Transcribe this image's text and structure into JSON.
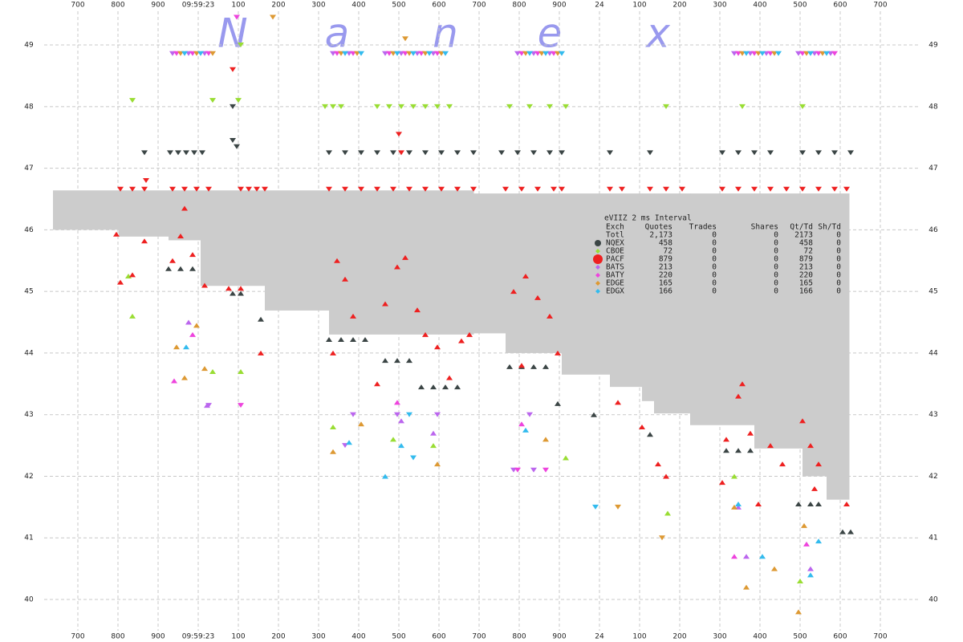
{
  "chart_data": {
    "type": "scatter",
    "watermark": [
      "N",
      "a",
      "n",
      "e",
      "x"
    ],
    "xlim": [
      506,
      2906
    ],
    "ylim": [
      39.31,
      49.73
    ],
    "xticks": [
      700,
      800,
      900,
      {
        "value": 1000,
        "label": "09:59:23"
      },
      {
        "value": 1100,
        "label": "100"
      },
      {
        "value": 1200,
        "label": "200"
      },
      {
        "value": 1300,
        "label": "300"
      },
      {
        "value": 1400,
        "label": "400"
      },
      {
        "value": 1500,
        "label": "500"
      },
      {
        "value": 1600,
        "label": "600"
      },
      {
        "value": 1700,
        "label": "700"
      },
      {
        "value": 1800,
        "label": "800"
      },
      {
        "value": 1900,
        "label": "900"
      },
      {
        "value": 2000,
        "label": "24"
      },
      {
        "value": 2100,
        "label": "100"
      },
      {
        "value": 2200,
        "label": "200"
      },
      {
        "value": 2300,
        "label": "300"
      },
      {
        "value": 2400,
        "label": "400"
      },
      {
        "value": 2500,
        "label": "500"
      },
      {
        "value": 2600,
        "label": "600"
      },
      {
        "value": 2700,
        "label": "700"
      }
    ],
    "yticks": [
      40,
      41,
      42,
      43,
      44,
      45,
      46,
      47,
      48,
      49
    ],
    "grid": true,
    "spread": {
      "color": "#cccccc",
      "x": [
        638,
        802,
        926,
        1006,
        1166,
        1326,
        1686,
        1766,
        1906,
        2026,
        2106,
        2136,
        2226,
        2386,
        2506,
        2566
      ],
      "x_end": 2622,
      "ask": [
        46.64,
        46.64,
        46.64,
        46.64,
        46.64,
        46.64,
        46.59,
        46.59,
        46.59,
        46.59,
        46.59,
        46.59,
        46.59,
        46.59,
        46.59,
        46.59
      ],
      "bid": [
        46.0,
        45.89,
        45.83,
        45.09,
        44.69,
        44.3,
        44.32,
        44.0,
        43.65,
        43.45,
        43.22,
        43.02,
        42.83,
        42.45,
        42.0,
        41.62
      ]
    },
    "table": {
      "title": "eVIIZ 2 ms Interval",
      "columns": [
        "Exch",
        "Quotes",
        "Trades",
        "Shares",
        "Qt/Td",
        "Sh/Td"
      ],
      "total": [
        "Totl",
        "2,173",
        "0",
        "0",
        "2173",
        "0"
      ]
    },
    "series": [
      {
        "name": "NQEX",
        "color": "#3b4545",
        "marker": "circle",
        "stats": [
          "458",
          "0",
          "0",
          "458",
          "0"
        ],
        "ask_x": [
          866,
          930,
          950,
          970,
          990,
          1010,
          1326,
          1366,
          1406,
          1446,
          1486,
          1526,
          1566,
          1606,
          1646,
          1686,
          1756,
          1796,
          1836,
          1876,
          1906,
          2026,
          2126,
          2306,
          2346,
          2386,
          2426,
          2506,
          2546,
          2586,
          2626,
          1086,
          1086,
          1096
        ],
        "ask_y": [
          47.25,
          47.25,
          47.25,
          47.25,
          47.25,
          47.25,
          47.25,
          47.25,
          47.25,
          47.25,
          47.25,
          47.25,
          47.25,
          47.25,
          47.25,
          47.25,
          47.25,
          47.25,
          47.25,
          47.25,
          47.25,
          47.25,
          47.25,
          47.25,
          47.25,
          47.25,
          47.25,
          47.25,
          47.25,
          47.25,
          47.25,
          48.0,
          47.45,
          47.35
        ],
        "bid_x": [
          926,
          956,
          986,
          1086,
          1106,
          1156,
          1326,
          1356,
          1386,
          1416,
          1466,
          1496,
          1526,
          1556,
          1586,
          1616,
          1646,
          1776,
          1806,
          1836,
          1866,
          1896,
          1986,
          2126,
          2316,
          2346,
          2376,
          2496,
          2526,
          2546,
          2606,
          2626
        ],
        "bid_y": [
          45.37,
          45.37,
          45.37,
          44.97,
          44.97,
          44.55,
          44.22,
          44.22,
          44.22,
          44.22,
          43.88,
          43.88,
          43.88,
          43.45,
          43.45,
          43.45,
          43.45,
          43.78,
          43.78,
          43.78,
          43.78,
          43.18,
          43.0,
          42.68,
          42.42,
          42.42,
          42.42,
          41.55,
          41.55,
          41.55,
          41.1,
          41.1
        ]
      },
      {
        "name": "CBOE",
        "color": "#99dd33",
        "marker": "diamond",
        "stats": [
          "72",
          "0",
          "0",
          "72",
          "0"
        ],
        "ask_x": [
          836,
          1036,
          1100,
          1106,
          1316,
          1336,
          1356,
          1446,
          1476,
          1506,
          1536,
          1566,
          1596,
          1626,
          1776,
          1826,
          1876,
          1916,
          2166,
          2356,
          2506
        ],
        "ask_y": [
          48.1,
          48.1,
          48.1,
          49.0,
          48.0,
          48.0,
          48.0,
          48.0,
          48.0,
          48.0,
          48.0,
          48.0,
          48.0,
          48.0,
          48.0,
          48.0,
          48.0,
          48.0,
          48.0,
          48.0,
          48.0
        ],
        "bid_x": [
          826,
          836,
          1036,
          1106,
          1336,
          1486,
          1586,
          1916,
          2170,
          2336,
          2500
        ],
        "bid_y": [
          45.25,
          44.6,
          43.7,
          43.7,
          42.8,
          42.6,
          42.5,
          42.3,
          41.4,
          42.0,
          40.3
        ]
      },
      {
        "name": "PACF",
        "color": "#ee2020",
        "marker": "bigcircle",
        "stats": [
          "879",
          "0",
          "0",
          "879",
          "0"
        ],
        "ask_x": [
          806,
          836,
          866,
          936,
          966,
          996,
          1026,
          1086,
          1106,
          1126,
          1146,
          1166,
          1326,
          1366,
          1406,
          1446,
          1486,
          1526,
          1566,
          1606,
          1646,
          1686,
          1766,
          1806,
          1846,
          1886,
          1906,
          2026,
          2056,
          2126,
          2166,
          2206,
          2306,
          2346,
          2386,
          2426,
          2466,
          2506,
          2546,
          2586,
          2616,
          1500,
          1506,
          870
        ],
        "ask_y": [
          46.66,
          46.66,
          46.66,
          46.66,
          46.66,
          46.66,
          46.66,
          48.6,
          46.66,
          46.66,
          46.66,
          46.66,
          46.66,
          46.66,
          46.66,
          46.66,
          46.66,
          46.66,
          46.66,
          46.66,
          46.66,
          46.66,
          46.66,
          46.66,
          46.66,
          46.66,
          46.66,
          46.66,
          46.66,
          46.66,
          46.66,
          46.66,
          46.66,
          46.66,
          46.66,
          46.66,
          46.66,
          46.66,
          46.66,
          46.66,
          46.66,
          47.55,
          47.25,
          46.8
        ],
        "bid_x": [
          796,
          806,
          836,
          866,
          936,
          956,
          966,
          986,
          1016,
          1076,
          1106,
          1156,
          1336,
          1346,
          1366,
          1386,
          1446,
          1466,
          1496,
          1516,
          1546,
          1566,
          1596,
          1626,
          1656,
          1676,
          1786,
          1816,
          1846,
          1876,
          1896,
          1806,
          2046,
          2106,
          2146,
          2166,
          2306,
          2316,
          2346,
          2356,
          2376,
          2396,
          2426,
          2456,
          2506,
          2526,
          2536,
          2546,
          2616
        ],
        "bid_y": [
          45.93,
          45.15,
          45.27,
          45.82,
          45.5,
          45.9,
          46.35,
          45.6,
          45.1,
          45.05,
          45.05,
          44.0,
          44.0,
          45.5,
          45.2,
          44.6,
          43.5,
          44.8,
          45.4,
          45.55,
          44.7,
          44.3,
          44.1,
          43.6,
          44.2,
          44.3,
          45.0,
          45.25,
          44.9,
          44.6,
          44.0,
          43.8,
          43.2,
          42.8,
          42.2,
          42.0,
          41.9,
          42.6,
          43.3,
          43.5,
          42.7,
          41.55,
          42.5,
          42.2,
          42.9,
          42.5,
          41.8,
          42.2,
          41.55
        ]
      },
      {
        "name": "BATS",
        "color": "#bb66ee",
        "marker": "diamond",
        "stats": [
          "213",
          "0",
          "0",
          "213",
          "0"
        ],
        "ask_x": [
          936,
          976,
          1016,
          1336,
          1376,
          1466,
          1506,
          1546,
          1586,
          1796,
          1836,
          1876,
          2336,
          2376,
          2416,
          2496,
          2536,
          2576,
          1026,
          1386,
          1496,
          1596,
          1826,
          1366,
          1786,
          1836
        ],
        "ask_y": [
          48.86,
          48.86,
          48.86,
          48.86,
          48.86,
          48.86,
          48.86,
          48.86,
          48.86,
          48.86,
          48.86,
          48.86,
          48.86,
          48.86,
          48.86,
          48.86,
          48.86,
          48.86,
          43.15,
          43.0,
          43.0,
          43.0,
          43.0,
          42.5,
          42.1,
          42.1
        ],
        "bid_x": [
          976,
          1022,
          1506,
          1586,
          2346,
          2366,
          2526
        ],
        "bid_y": [
          44.5,
          43.15,
          42.9,
          42.7,
          41.5,
          40.7,
          40.5
        ]
      },
      {
        "name": "BATY",
        "color": "#ee44dd",
        "marker": "diamond",
        "stats": [
          "220",
          "0",
          "0",
          "220",
          "0"
        ],
        "ask_x": [
          946,
          986,
          1026,
          1346,
          1386,
          1476,
          1516,
          1556,
          1596,
          1806,
          1846,
          1886,
          2346,
          2386,
          2426,
          2506,
          2546,
          2586,
          1096,
          1106,
          1796,
          1866
        ],
        "ask_y": [
          48.86,
          48.86,
          48.86,
          48.86,
          48.86,
          48.86,
          48.86,
          48.86,
          48.86,
          48.86,
          48.86,
          48.86,
          48.86,
          48.86,
          48.86,
          48.86,
          48.86,
          48.86,
          49.45,
          43.15,
          42.1,
          42.1
        ],
        "bid_x": [
          986,
          940,
          1496,
          1806,
          2336,
          2516
        ],
        "bid_y": [
          44.3,
          43.55,
          43.2,
          42.85,
          40.7,
          40.9
        ]
      },
      {
        "name": "EDGE",
        "color": "#dd9933",
        "marker": "diamond",
        "stats": [
          "165",
          "0",
          "0",
          "165",
          "0"
        ],
        "ask_x": [
          956,
          996,
          1036,
          1356,
          1396,
          1486,
          1526,
          1566,
          1606,
          1816,
          1856,
          1896,
          2356,
          2396,
          2436,
          2516,
          2556,
          1186,
          1516,
          2046,
          2156
        ],
        "ask_y": [
          48.86,
          48.86,
          48.86,
          48.86,
          48.86,
          48.86,
          48.86,
          48.86,
          48.86,
          48.86,
          48.86,
          48.86,
          48.86,
          48.86,
          48.86,
          48.86,
          48.86,
          49.45,
          49.1,
          41.5,
          41.0
        ],
        "bid_x": [
          996,
          946,
          1016,
          966,
          1406,
          1336,
          1596,
          1866,
          2336,
          2366,
          2436,
          2510,
          2496
        ],
        "bid_y": [
          44.45,
          44.1,
          43.75,
          43.6,
          42.85,
          42.4,
          42.2,
          42.6,
          41.5,
          40.2,
          40.5,
          41.2,
          39.8
        ]
      },
      {
        "name": "EDGX",
        "color": "#33bbee",
        "marker": "diamond",
        "stats": [
          "166",
          "0",
          "0",
          "166",
          "0"
        ],
        "ask_x": [
          966,
          1006,
          1366,
          1406,
          1496,
          1536,
          1576,
          1616,
          1826,
          1866,
          1906,
          2366,
          2406,
          2446,
          2526,
          2566,
          1990,
          1526,
          1536
        ],
        "ask_y": [
          48.86,
          48.86,
          48.86,
          48.86,
          48.86,
          48.86,
          48.86,
          48.86,
          48.86,
          48.86,
          48.86,
          48.86,
          48.86,
          48.86,
          48.86,
          48.86,
          41.5,
          43.0,
          42.3
        ],
        "bid_x": [
          970,
          1376,
          1466,
          1506,
          1816,
          2346,
          2406,
          2546,
          2526
        ],
        "bid_y": [
          44.1,
          42.55,
          42.0,
          42.5,
          42.75,
          41.55,
          40.7,
          40.95,
          40.4
        ]
      }
    ]
  }
}
